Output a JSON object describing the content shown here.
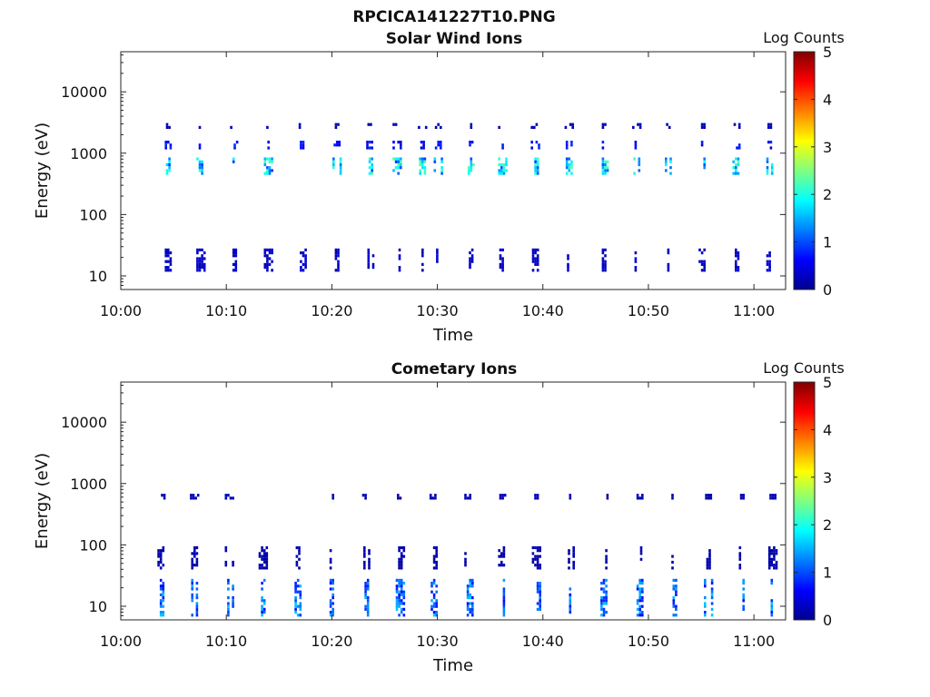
{
  "figure_title": "RPCICA141227T10.PNG",
  "chart_data": [
    {
      "type": "heatmap",
      "title": "Solar Wind Ions",
      "xlabel": "Time",
      "ylabel": "Energy (eV)",
      "x_ticks": [
        "10:00",
        "10:10",
        "10:20",
        "10:30",
        "10:40",
        "10:50",
        "11:00"
      ],
      "x_tick_minutes": [
        0,
        10,
        20,
        30,
        40,
        50,
        60
      ],
      "xlim_minutes": [
        0,
        63
      ],
      "y_scale": "log",
      "y_ticks": [
        "10",
        "100",
        "1000",
        "10000"
      ],
      "y_tick_values": [
        10,
        100,
        1000,
        10000
      ],
      "ylim": [
        6,
        45000
      ],
      "colorbar": {
        "label": "Log Counts",
        "ticks": [
          "0",
          "1",
          "2",
          "3",
          "4",
          "5"
        ],
        "range": [
          0,
          5
        ],
        "colormap": "jet"
      },
      "spectra_minutes": [
        4.5,
        7.6,
        10.8,
        14,
        17.3,
        20.5,
        23.7,
        26.2,
        28.6,
        30.1,
        33.2,
        36.2,
        39.3,
        42.5,
        45.8,
        48.9,
        52,
        55.2,
        58.4,
        61.5
      ],
      "bands": [
        {
          "e_min": 450,
          "e_max": 850,
          "level": 1.6
        },
        {
          "e_min": 1250,
          "e_max": 1600,
          "level": 0.6
        },
        {
          "e_min": 2500,
          "e_max": 3100,
          "level": 0.2
        },
        {
          "e_min": 12,
          "e_max": 28,
          "level": 0.3
        }
      ]
    },
    {
      "type": "heatmap",
      "title": "Cometary Ions",
      "xlabel": "Time",
      "ylabel": "Energy (eV)",
      "x_ticks": [
        "10:00",
        "10:10",
        "10:20",
        "10:30",
        "10:40",
        "10:50",
        "11:00"
      ],
      "x_tick_minutes": [
        0,
        10,
        20,
        30,
        40,
        50,
        60
      ],
      "xlim_minutes": [
        0,
        63
      ],
      "y_scale": "log",
      "y_ticks": [
        "10",
        "100",
        "1000",
        "10000"
      ],
      "y_tick_values": [
        10,
        100,
        1000,
        10000
      ],
      "ylim": [
        6,
        45000
      ],
      "colorbar": {
        "label": "Log Counts",
        "ticks": [
          "0",
          "1",
          "2",
          "3",
          "4",
          "5"
        ],
        "range": [
          0,
          5
        ],
        "colormap": "jet"
      },
      "spectra_minutes": [
        3.8,
        7,
        10.3,
        13.5,
        16.8,
        20,
        23.2,
        26.5,
        29.7,
        33,
        36.2,
        39.4,
        42.7,
        45.9,
        49.2,
        52.4,
        55.7,
        58.9,
        61.8
      ],
      "bands": [
        {
          "e_min": 7,
          "e_max": 28,
          "level": 1.1
        },
        {
          "e_min": 560,
          "e_max": 680,
          "level": 0.2
        },
        {
          "e_min": 40,
          "e_max": 95,
          "level": 0.15
        }
      ]
    }
  ]
}
